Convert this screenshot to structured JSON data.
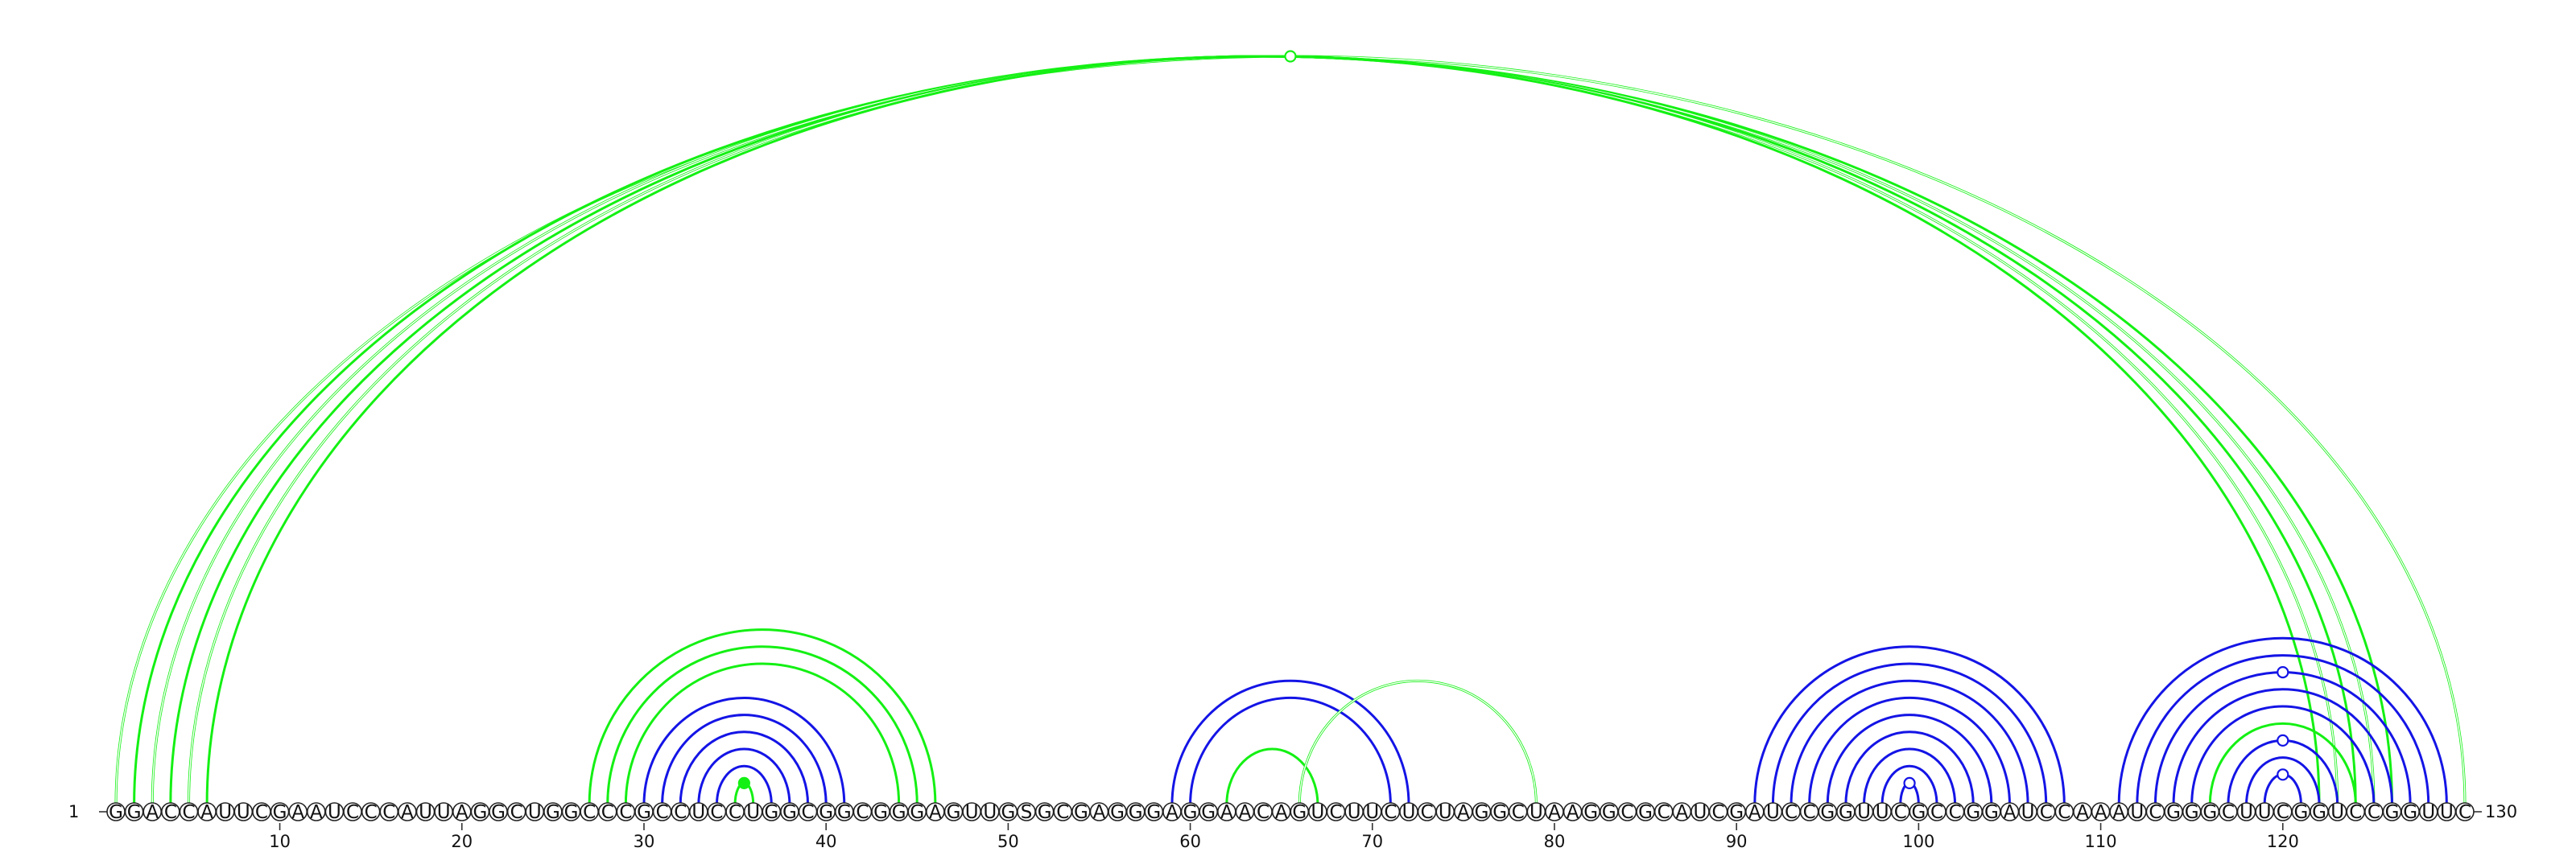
{
  "colors": {
    "green": "#14f014",
    "blue": "#1414e6"
  },
  "sequence": "GGACCAUUCGAAUCCCAUUAGGCUGGCCCGCCUCCUGGCGGCGGGAGUUGSGCGAGGGAGGAACAGUCUUCUCUAGGCUAAGGCGCAUCGAUCCGGUUCGCCGGAUCCAAAUCGGGCUUCGGUCCGGUUC",
  "start_label": "1",
  "end_label": "130",
  "tick_labels": [
    "10",
    "20",
    "30",
    "40",
    "50",
    "60",
    "70",
    "80",
    "90",
    "100",
    "110",
    "120"
  ],
  "arcs": [
    {
      "i": 1,
      "j": 130,
      "color": "green",
      "double": true
    },
    {
      "i": 2,
      "j": 126,
      "color": "green",
      "double": false
    },
    {
      "i": 3,
      "j": 125,
      "color": "green",
      "double": true
    },
    {
      "i": 4,
      "j": 124,
      "color": "green",
      "double": false
    },
    {
      "i": 5,
      "j": 123,
      "color": "green",
      "double": true
    },
    {
      "i": 6,
      "j": 122,
      "color": "green",
      "double": false
    },
    {
      "i": 27,
      "j": 46,
      "color": "green",
      "double": false
    },
    {
      "i": 28,
      "j": 45,
      "color": "green",
      "double": false
    },
    {
      "i": 29,
      "j": 44,
      "color": "green",
      "double": false
    },
    {
      "i": 30,
      "j": 41,
      "color": "blue",
      "double": false
    },
    {
      "i": 31,
      "j": 40,
      "color": "blue",
      "double": false
    },
    {
      "i": 32,
      "j": 39,
      "color": "blue",
      "double": false
    },
    {
      "i": 33,
      "j": 38,
      "color": "blue",
      "double": false
    },
    {
      "i": 34,
      "j": 37,
      "color": "blue",
      "double": false
    },
    {
      "i": 35,
      "j": 36,
      "color": "green",
      "double": false
    },
    {
      "i": 59,
      "j": 72,
      "color": "blue",
      "double": false
    },
    {
      "i": 60,
      "j": 71,
      "color": "blue",
      "double": false
    },
    {
      "i": 62,
      "j": 67,
      "color": "green",
      "double": false
    },
    {
      "i": 66,
      "j": 79,
      "color": "green",
      "double": true
    },
    {
      "i": 91,
      "j": 108,
      "color": "blue",
      "double": false
    },
    {
      "i": 92,
      "j": 107,
      "color": "blue",
      "double": false
    },
    {
      "i": 93,
      "j": 106,
      "color": "blue",
      "double": false
    },
    {
      "i": 94,
      "j": 105,
      "color": "blue",
      "double": false
    },
    {
      "i": 95,
      "j": 104,
      "color": "blue",
      "double": false
    },
    {
      "i": 96,
      "j": 103,
      "color": "blue",
      "double": false
    },
    {
      "i": 97,
      "j": 102,
      "color": "blue",
      "double": false
    },
    {
      "i": 98,
      "j": 101,
      "color": "blue",
      "double": false
    },
    {
      "i": 99,
      "j": 100,
      "color": "blue",
      "double": false
    },
    {
      "i": 111,
      "j": 129,
      "color": "blue",
      "double": false
    },
    {
      "i": 112,
      "j": 128,
      "color": "blue",
      "double": false
    },
    {
      "i": 113,
      "j": 127,
      "color": "blue",
      "double": false
    },
    {
      "i": 114,
      "j": 126,
      "color": "blue",
      "double": false
    },
    {
      "i": 115,
      "j": 125,
      "color": "blue",
      "double": false
    },
    {
      "i": 116,
      "j": 124,
      "color": "green",
      "double": false
    },
    {
      "i": 117,
      "j": 123,
      "color": "blue",
      "double": false
    },
    {
      "i": 118,
      "j": 122,
      "color": "blue",
      "double": false
    },
    {
      "i": 119,
      "j": 121,
      "color": "blue",
      "double": false
    }
  ],
  "markers": [
    {
      "i": 1,
      "j": 130,
      "color": "green",
      "filled": false
    },
    {
      "i": 35,
      "j": 36,
      "color": "green",
      "filled": true
    },
    {
      "i": 99,
      "j": 100,
      "color": "blue",
      "filled": false
    },
    {
      "i": 113,
      "j": 127,
      "color": "blue",
      "filled": false
    },
    {
      "i": 117,
      "j": 123,
      "color": "blue",
      "filled": false
    },
    {
      "i": 119,
      "j": 121,
      "color": "blue",
      "filled": false
    }
  ]
}
